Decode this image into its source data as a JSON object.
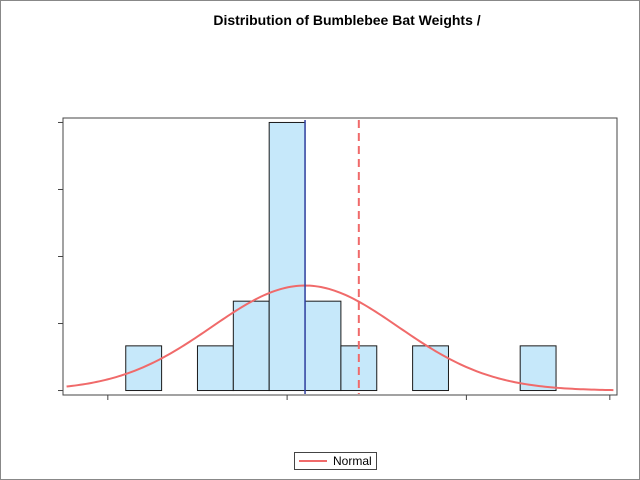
{
  "chart_data": {
    "type": "bar",
    "title": "Distribution of Bumblebee Bat Weights /",
    "xlabel": "",
    "ylabel": "",
    "bins": [
      {
        "start": 1,
        "end": 2,
        "count": 1
      },
      {
        "start": 2,
        "end": 3,
        "count": 0
      },
      {
        "start": 3,
        "end": 4,
        "count": 1
      },
      {
        "start": 4,
        "end": 5,
        "count": 2
      },
      {
        "start": 5,
        "end": 6,
        "count": 6
      },
      {
        "start": 6,
        "end": 7,
        "count": 2
      },
      {
        "start": 7,
        "end": 8,
        "count": 1
      },
      {
        "start": 8,
        "end": 9,
        "count": 0
      },
      {
        "start": 9,
        "end": 10,
        "count": 1
      },
      {
        "start": 10,
        "end": 11,
        "count": 0
      },
      {
        "start": 11,
        "end": 12,
        "count": 0
      },
      {
        "start": 12,
        "end": 13,
        "count": 1
      }
    ],
    "xlim": [
      -0.75,
      14.7
    ],
    "ylim": [
      -0.1,
      6.1
    ],
    "x_ticks": [
      0.5,
      5.5,
      10.5,
      14.5
    ],
    "y_ticks": [
      0,
      1.5,
      3,
      4.5,
      6
    ],
    "normal_curve": {
      "name": "Normal",
      "mean": 6.0,
      "sd": 2.6,
      "peak": 2.35
    },
    "reference_lines": [
      {
        "x": 6.0,
        "style": "solid"
      },
      {
        "x": 7.5,
        "style": "dashed"
      }
    ],
    "legend": {
      "entries": [
        "Normal"
      ],
      "position": "bottom-center"
    },
    "grid": false,
    "colors": {
      "bar_fill": "#c6e8fa",
      "bar_stroke": "#1a1a1a",
      "curve": "#f06a6a",
      "mean_line": "#3040a0",
      "dashed_line": "#f06a6a",
      "axis": "#444444"
    }
  }
}
